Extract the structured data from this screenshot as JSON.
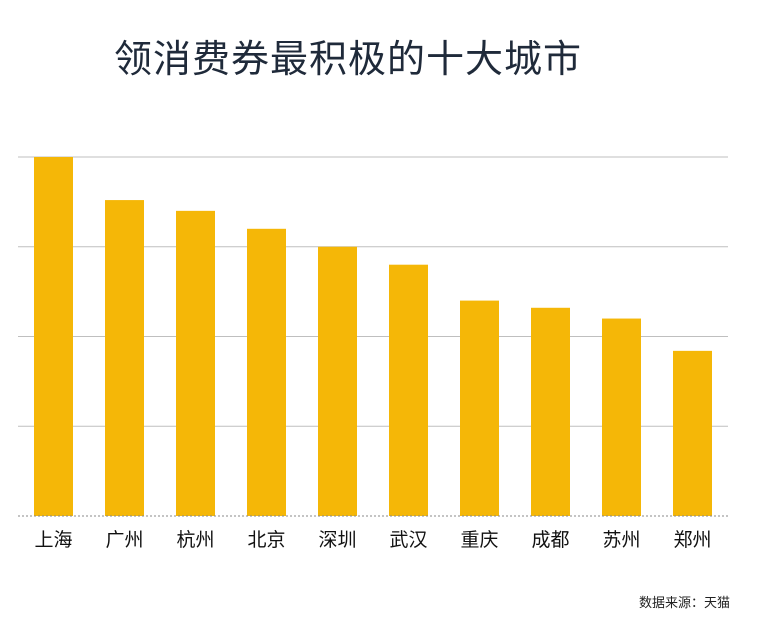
{
  "title": "领消费券最积极的十大城市",
  "source": "数据来源：天猫",
  "chart_data": {
    "type": "bar",
    "title": "领消费券最积极的十大城市",
    "categories": [
      "上海",
      "广州",
      "杭州",
      "北京",
      "深圳",
      "武汉",
      "重庆",
      "成都",
      "苏州",
      "郑州"
    ],
    "values": [
      100,
      88,
      85,
      80,
      75,
      70,
      60,
      58,
      55,
      46
    ],
    "ylim": [
      0,
      100
    ],
    "xlabel": "",
    "ylabel": "",
    "grid": true,
    "legend": "none",
    "bar_color": "#F5B707",
    "grid_color": "#bfbfbf"
  }
}
